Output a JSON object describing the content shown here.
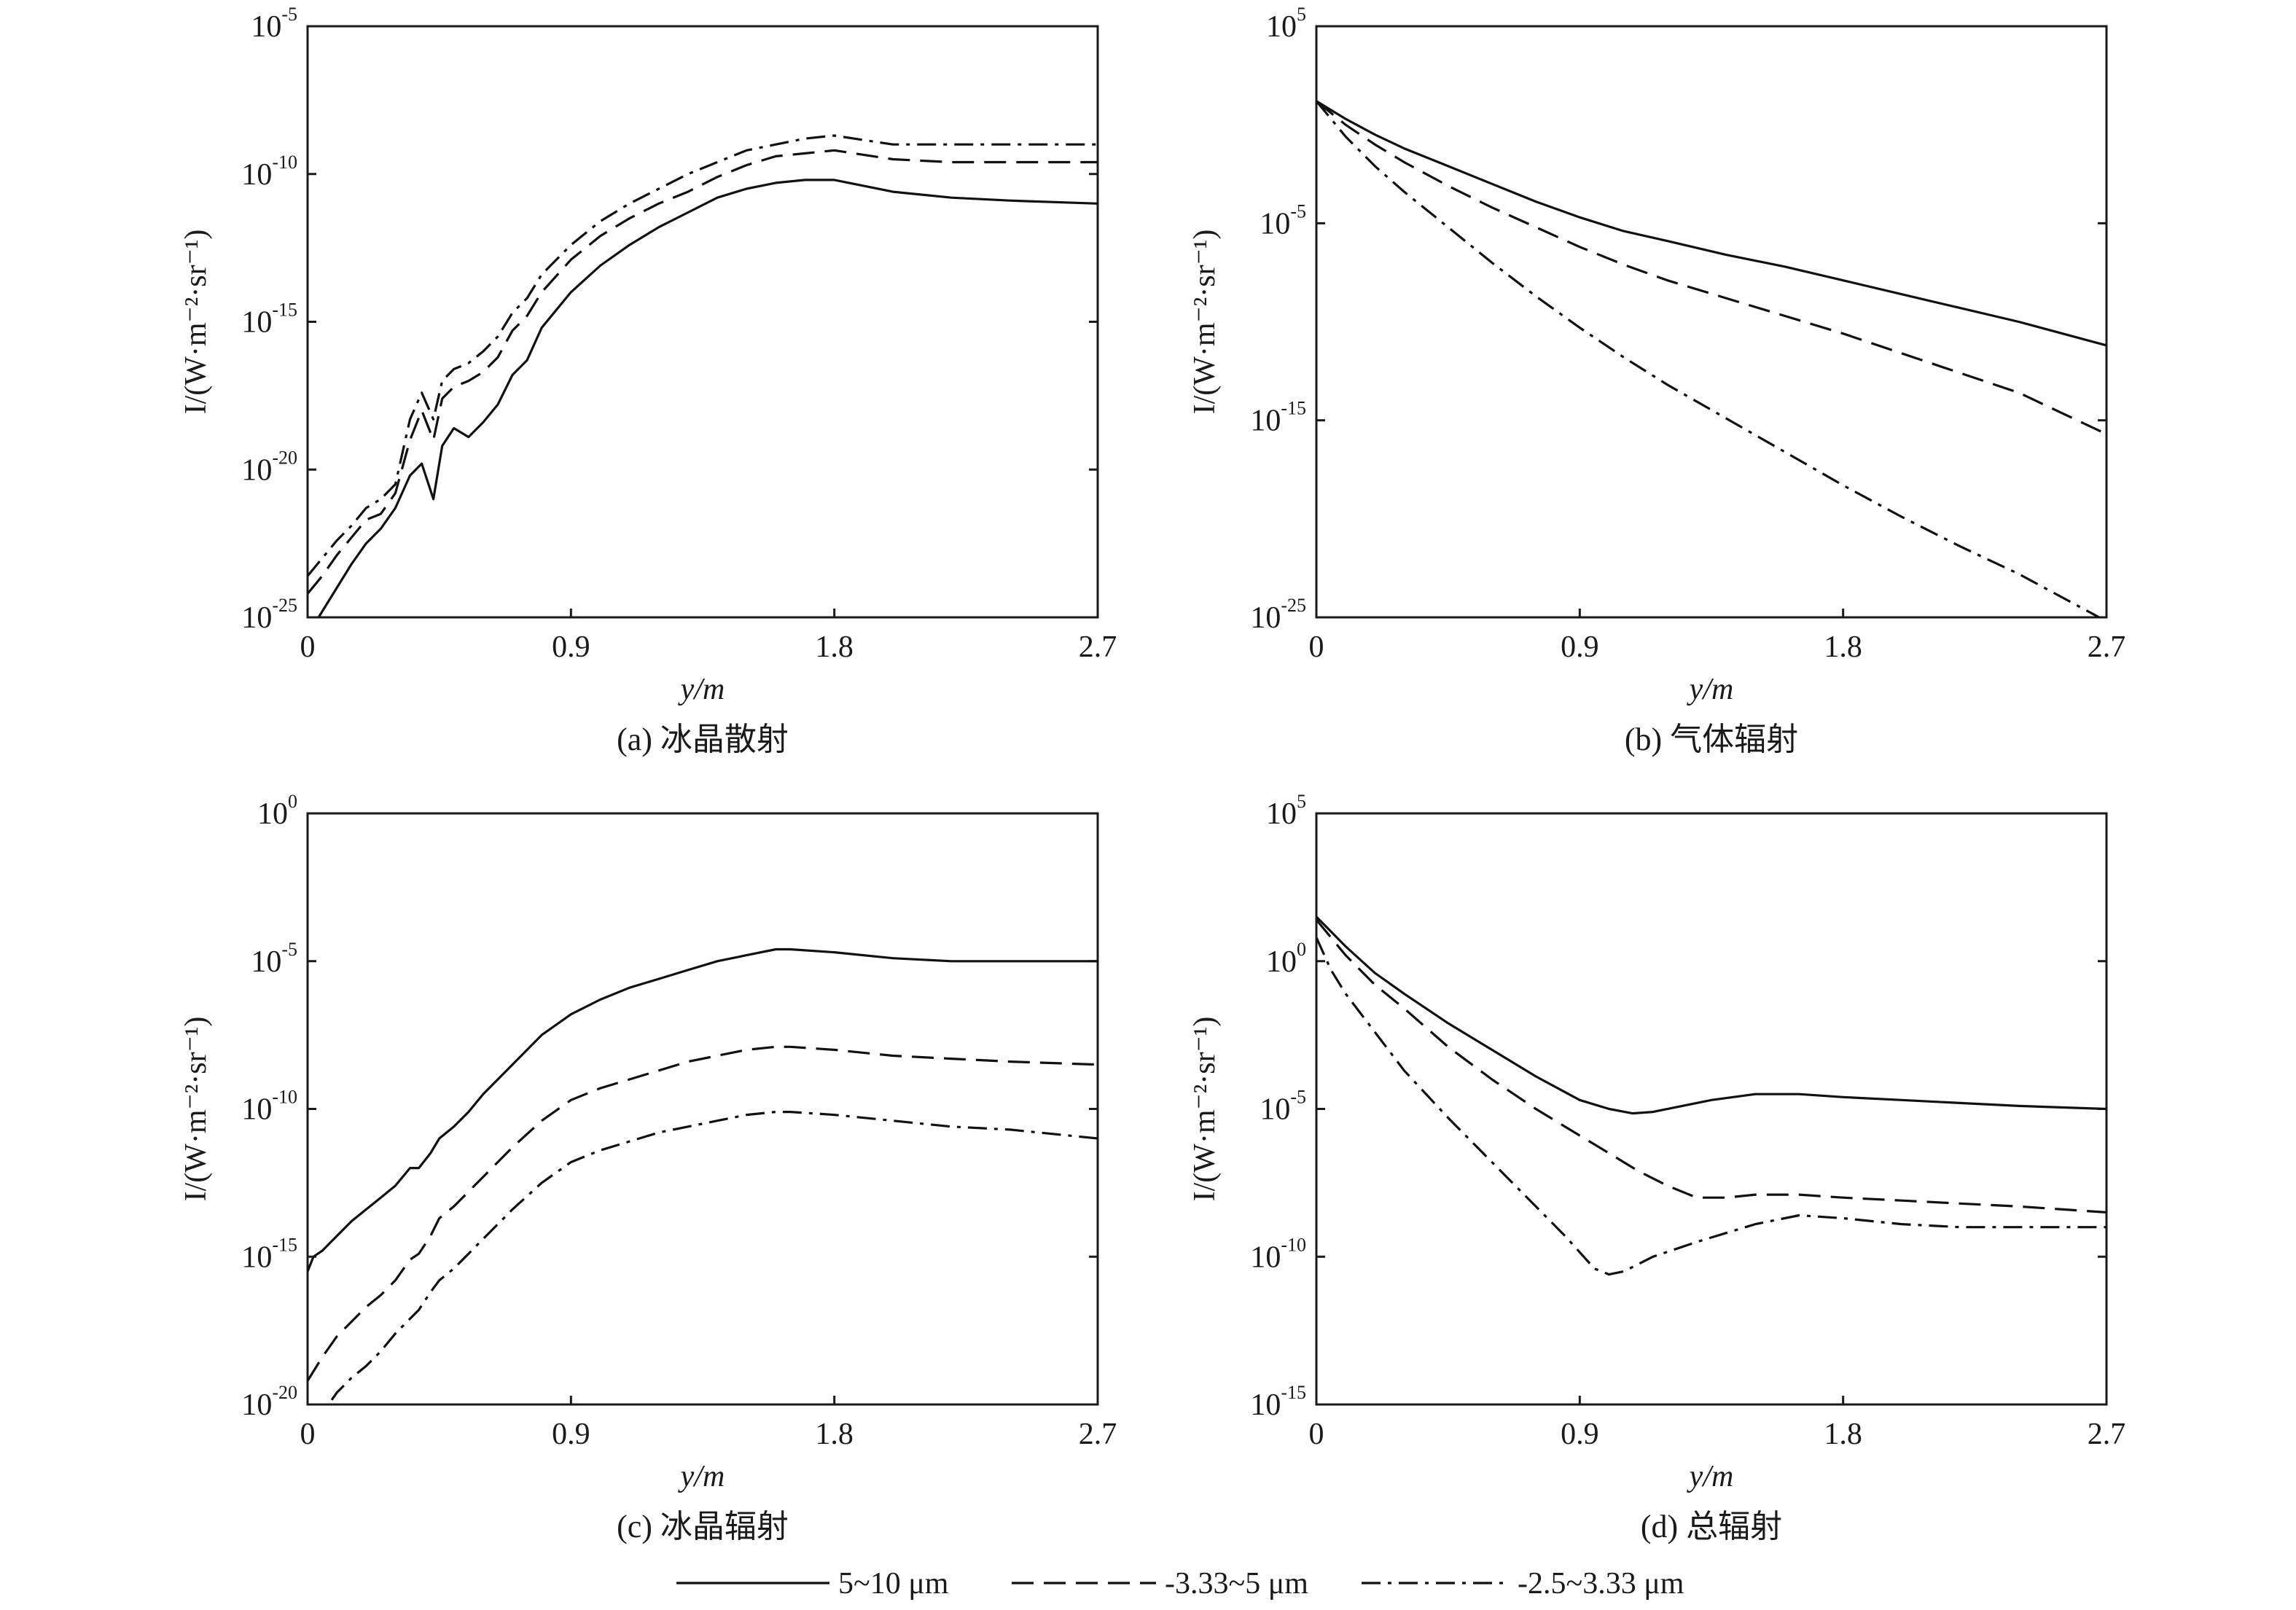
{
  "chart_data": [
    {
      "id": "a",
      "type": "line",
      "caption": "(a) 冰晶散射",
      "xlabel": "y/m",
      "ylabel": "I/(W·m⁻²·sr⁻¹)",
      "log_y": true,
      "xlim": [
        0,
        2.7
      ],
      "ylim_exp": [
        -25,
        -5
      ],
      "xticks": [
        "0",
        "0.9",
        "1.8",
        "2.7"
      ],
      "yticks_exp": [
        "-25",
        "-20",
        "-15",
        "-10",
        "-5"
      ],
      "series": [
        {
          "name": "5~10 μm",
          "style": "solid",
          "x": [
            0.0,
            0.05,
            0.1,
            0.15,
            0.2,
            0.25,
            0.3,
            0.35,
            0.39,
            0.43,
            0.46,
            0.5,
            0.55,
            0.6,
            0.65,
            0.7,
            0.75,
            0.8,
            0.9,
            1.0,
            1.1,
            1.2,
            1.3,
            1.4,
            1.5,
            1.6,
            1.7,
            1.8,
            2.0,
            2.2,
            2.4,
            2.7
          ],
          "y_exp": [
            -25.6,
            -24.8,
            -24.0,
            -23.2,
            -22.5,
            -22.0,
            -21.3,
            -20.2,
            -19.8,
            -21.0,
            -19.2,
            -18.6,
            -18.9,
            -18.4,
            -17.8,
            -16.8,
            -16.3,
            -15.2,
            -14.0,
            -13.1,
            -12.4,
            -11.8,
            -11.3,
            -10.8,
            -10.5,
            -10.3,
            -10.2,
            -10.2,
            -10.6,
            -10.8,
            -10.9,
            -11.0
          ]
        },
        {
          "name": "3.33~5 μm",
          "style": "dash",
          "x": [
            0.0,
            0.05,
            0.1,
            0.15,
            0.2,
            0.25,
            0.3,
            0.35,
            0.39,
            0.43,
            0.46,
            0.5,
            0.55,
            0.6,
            0.65,
            0.7,
            0.75,
            0.8,
            0.9,
            1.0,
            1.1,
            1.2,
            1.3,
            1.4,
            1.5,
            1.6,
            1.7,
            1.8,
            2.0,
            2.2,
            2.4,
            2.7
          ],
          "y_exp": [
            -24.2,
            -23.6,
            -22.9,
            -22.3,
            -21.7,
            -21.5,
            -20.8,
            -19.0,
            -18.0,
            -19.0,
            -17.6,
            -17.2,
            -17.0,
            -16.7,
            -16.2,
            -15.3,
            -14.8,
            -14.0,
            -12.9,
            -12.1,
            -11.5,
            -11.0,
            -10.6,
            -10.1,
            -9.7,
            -9.4,
            -9.3,
            -9.2,
            -9.5,
            -9.6,
            -9.6,
            -9.6
          ]
        },
        {
          "name": "2.5~3.33 μm",
          "style": "dashdot",
          "x": [
            0.0,
            0.05,
            0.1,
            0.15,
            0.2,
            0.25,
            0.3,
            0.35,
            0.39,
            0.43,
            0.46,
            0.5,
            0.55,
            0.6,
            0.65,
            0.7,
            0.75,
            0.8,
            0.9,
            1.0,
            1.1,
            1.2,
            1.3,
            1.4,
            1.5,
            1.6,
            1.7,
            1.8,
            2.0,
            2.2,
            2.4,
            2.7
          ],
          "y_exp": [
            -23.6,
            -23.0,
            -22.4,
            -21.9,
            -21.3,
            -21.0,
            -20.5,
            -18.3,
            -17.4,
            -18.3,
            -17.0,
            -16.6,
            -16.4,
            -16.0,
            -15.5,
            -14.7,
            -14.2,
            -13.4,
            -12.4,
            -11.6,
            -11.0,
            -10.5,
            -10.0,
            -9.6,
            -9.2,
            -9.0,
            -8.8,
            -8.7,
            -9.0,
            -9.0,
            -9.0,
            -9.0
          ]
        }
      ]
    },
    {
      "id": "b",
      "type": "line",
      "caption": "(b) 气体辐射",
      "xlabel": "y/m",
      "ylabel": "I/(W·m⁻²·sr⁻¹)",
      "log_y": true,
      "xlim": [
        0,
        2.7
      ],
      "ylim_exp": [
        -25,
        5
      ],
      "xticks": [
        "0",
        "0.9",
        "1.8",
        "2.7"
      ],
      "yticks_exp": [
        "-25",
        "-15",
        "-5",
        "5"
      ],
      "series": [
        {
          "name": "5~10 μm",
          "style": "solid",
          "x": [
            0.0,
            0.1,
            0.2,
            0.3,
            0.45,
            0.6,
            0.75,
            0.9,
            1.05,
            1.2,
            1.4,
            1.6,
            1.8,
            2.0,
            2.2,
            2.4,
            2.7
          ],
          "y_exp": [
            1.2,
            0.3,
            -0.5,
            -1.2,
            -2.1,
            -3.0,
            -3.9,
            -4.7,
            -5.4,
            -5.9,
            -6.6,
            -7.2,
            -7.9,
            -8.6,
            -9.3,
            -10.0,
            -11.2
          ]
        },
        {
          "name": "3.33~5 μm",
          "style": "dash",
          "x": [
            0.0,
            0.1,
            0.2,
            0.3,
            0.45,
            0.6,
            0.75,
            0.9,
            1.05,
            1.2,
            1.4,
            1.6,
            1.8,
            2.0,
            2.2,
            2.4,
            2.7
          ],
          "y_exp": [
            1.2,
            0.0,
            -1.0,
            -1.9,
            -3.1,
            -4.2,
            -5.2,
            -6.2,
            -7.1,
            -7.9,
            -8.8,
            -9.7,
            -10.6,
            -11.6,
            -12.6,
            -13.6,
            -15.7
          ]
        },
        {
          "name": "2.5~3.33 μm",
          "style": "dashdot",
          "x": [
            0.0,
            0.1,
            0.2,
            0.3,
            0.45,
            0.6,
            0.75,
            0.9,
            1.05,
            1.2,
            1.4,
            1.6,
            1.8,
            2.0,
            2.2,
            2.4,
            2.7
          ],
          "y_exp": [
            1.2,
            -0.6,
            -2.1,
            -3.4,
            -5.2,
            -7.0,
            -8.7,
            -10.3,
            -11.8,
            -13.2,
            -14.9,
            -16.6,
            -18.3,
            -19.9,
            -21.4,
            -22.8,
            -25.2
          ]
        }
      ]
    },
    {
      "id": "c",
      "type": "line",
      "caption": "(c) 冰晶辐射",
      "xlabel": "y/m",
      "ylabel": "I/(W·m⁻²·sr⁻¹)",
      "log_y": true,
      "xlim": [
        0,
        2.7
      ],
      "ylim_exp": [
        -20,
        0
      ],
      "xticks": [
        "0",
        "0.9",
        "1.8",
        "2.7"
      ],
      "yticks_exp": [
        "-20",
        "-15",
        "-10",
        "-5",
        "0"
      ],
      "series": [
        {
          "name": "5~10 μm",
          "style": "solid",
          "x": [
            0.0,
            0.02,
            0.05,
            0.1,
            0.15,
            0.2,
            0.25,
            0.3,
            0.35,
            0.38,
            0.42,
            0.45,
            0.5,
            0.55,
            0.6,
            0.7,
            0.8,
            0.9,
            1.0,
            1.1,
            1.2,
            1.3,
            1.4,
            1.5,
            1.6,
            1.65,
            1.8,
            2.0,
            2.2,
            2.4,
            2.7
          ],
          "y_exp": [
            -15.5,
            -15.0,
            -14.8,
            -14.3,
            -13.8,
            -13.4,
            -13.0,
            -12.6,
            -12.0,
            -12.0,
            -11.5,
            -11.0,
            -10.6,
            -10.1,
            -9.5,
            -8.5,
            -7.5,
            -6.8,
            -6.3,
            -5.9,
            -5.6,
            -5.3,
            -5.0,
            -4.8,
            -4.6,
            -4.6,
            -4.7,
            -4.9,
            -5.0,
            -5.0,
            -5.0
          ]
        },
        {
          "name": "3.33~5 μm",
          "style": "dash",
          "x": [
            0.0,
            0.05,
            0.1,
            0.15,
            0.2,
            0.25,
            0.3,
            0.35,
            0.38,
            0.42,
            0.45,
            0.5,
            0.55,
            0.6,
            0.7,
            0.8,
            0.9,
            1.0,
            1.1,
            1.2,
            1.3,
            1.4,
            1.5,
            1.6,
            1.65,
            1.8,
            2.0,
            2.2,
            2.4,
            2.7
          ],
          "y_exp": [
            -19.2,
            -18.4,
            -17.7,
            -17.2,
            -16.7,
            -16.3,
            -15.8,
            -15.1,
            -14.9,
            -14.3,
            -13.7,
            -13.3,
            -12.8,
            -12.3,
            -11.3,
            -10.4,
            -9.7,
            -9.3,
            -9.0,
            -8.7,
            -8.4,
            -8.2,
            -8.0,
            -7.9,
            -7.9,
            -8.0,
            -8.2,
            -8.3,
            -8.4,
            -8.5
          ]
        },
        {
          "name": "2.5~3.33 μm",
          "style": "dashdot",
          "x": [
            0.0,
            0.05,
            0.1,
            0.15,
            0.2,
            0.25,
            0.3,
            0.35,
            0.38,
            0.42,
            0.45,
            0.5,
            0.55,
            0.6,
            0.7,
            0.8,
            0.9,
            1.0,
            1.1,
            1.2,
            1.3,
            1.4,
            1.5,
            1.6,
            1.65,
            1.8,
            2.0,
            2.2,
            2.4,
            2.7
          ],
          "y_exp": [
            -20.8,
            -20.3,
            -19.6,
            -19.1,
            -18.7,
            -18.2,
            -17.6,
            -17.1,
            -16.8,
            -16.2,
            -15.8,
            -15.4,
            -14.9,
            -14.4,
            -13.4,
            -12.5,
            -11.8,
            -11.4,
            -11.1,
            -10.8,
            -10.6,
            -10.4,
            -10.2,
            -10.1,
            -10.1,
            -10.2,
            -10.4,
            -10.6,
            -10.7,
            -11.0
          ]
        }
      ]
    },
    {
      "id": "d",
      "type": "line",
      "caption": "(d) 总辐射",
      "xlabel": "y/m",
      "ylabel": "I/(W·m⁻²·sr⁻¹)",
      "log_y": true,
      "xlim": [
        0,
        2.7
      ],
      "ylim_exp": [
        -15,
        5
      ],
      "xticks": [
        "0",
        "0.9",
        "1.8",
        "2.7"
      ],
      "yticks_exp": [
        "-15",
        "-10",
        "-5",
        "0",
        "5"
      ],
      "series": [
        {
          "name": "5~10 μm",
          "style": "solid",
          "x": [
            0.0,
            0.1,
            0.2,
            0.3,
            0.45,
            0.6,
            0.75,
            0.9,
            1.0,
            1.08,
            1.15,
            1.25,
            1.35,
            1.5,
            1.65,
            1.8,
            2.0,
            2.2,
            2.4,
            2.7
          ],
          "y_exp": [
            1.5,
            0.5,
            -0.4,
            -1.1,
            -2.1,
            -3.0,
            -3.9,
            -4.7,
            -5.0,
            -5.15,
            -5.1,
            -4.9,
            -4.7,
            -4.5,
            -4.5,
            -4.6,
            -4.7,
            -4.8,
            -4.9,
            -5.0
          ]
        },
        {
          "name": "3.33~5 μm",
          "style": "dash",
          "x": [
            0.0,
            0.1,
            0.2,
            0.3,
            0.45,
            0.6,
            0.75,
            0.9,
            1.0,
            1.1,
            1.2,
            1.3,
            1.4,
            1.5,
            1.65,
            1.8,
            2.0,
            2.2,
            2.4,
            2.7
          ],
          "y_exp": [
            1.4,
            0.2,
            -0.8,
            -1.6,
            -2.9,
            -4.0,
            -5.0,
            -5.9,
            -6.5,
            -7.1,
            -7.6,
            -8.0,
            -8.0,
            -7.9,
            -7.9,
            -8.0,
            -8.1,
            -8.2,
            -8.3,
            -8.5
          ]
        },
        {
          "name": "2.5~3.33 μm",
          "style": "dashdot",
          "x": [
            0.0,
            0.05,
            0.1,
            0.2,
            0.3,
            0.45,
            0.6,
            0.75,
            0.85,
            0.95,
            1.0,
            1.05,
            1.15,
            1.3,
            1.5,
            1.65,
            1.8,
            2.0,
            2.2,
            2.4,
            2.7
          ],
          "y_exp": [
            0.8,
            -0.3,
            -1.1,
            -2.4,
            -3.7,
            -5.3,
            -6.8,
            -8.3,
            -9.3,
            -10.4,
            -10.6,
            -10.5,
            -10.0,
            -9.5,
            -8.9,
            -8.6,
            -8.7,
            -8.9,
            -9.0,
            -9.0,
            -9.0
          ]
        }
      ]
    }
  ],
  "legend": {
    "placement": "bottom-center",
    "items": [
      {
        "label": "5~10 μm",
        "style": "solid"
      },
      {
        "label": "-3.33~5 μm",
        "style": "dash"
      },
      {
        "label": "-2.5~3.33 μm",
        "style": "dashdot"
      }
    ]
  },
  "colors": {
    "line": "#111111",
    "axis": "#1a1a1a",
    "background": "#ffffff"
  }
}
